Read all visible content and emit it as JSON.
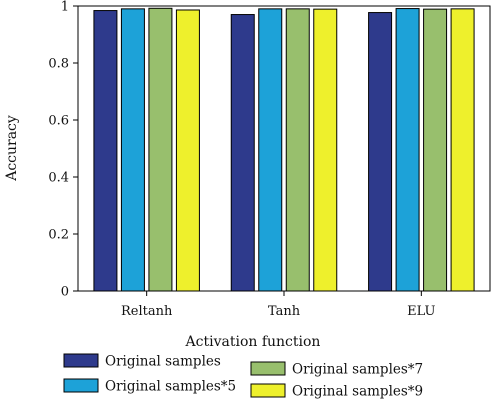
{
  "chart_data": {
    "type": "bar",
    "title": "",
    "xlabel": "Activation function",
    "ylabel": "Accuracy",
    "categories": [
      "Reltanh",
      "Tanh",
      "ELU"
    ],
    "ylim": [
      0,
      1
    ],
    "yticks": [
      "0",
      "0.2",
      "0.4",
      "0.6",
      "0.8",
      "1"
    ],
    "grid": false,
    "legend_position": "bottom",
    "series": [
      {
        "name": "Original samples",
        "color": "#2e3a8c",
        "values": [
          0.984,
          0.97,
          0.977
        ]
      },
      {
        "name": "Original samples*5",
        "color": "#1da2d8",
        "values": [
          0.99,
          0.99,
          0.991
        ]
      },
      {
        "name": "Original samples*7",
        "color": "#98bf6d",
        "values": [
          0.992,
          0.99,
          0.989
        ]
      },
      {
        "name": "Original samples*9",
        "color": "#eef02c",
        "values": [
          0.986,
          0.989,
          0.99
        ]
      }
    ]
  }
}
